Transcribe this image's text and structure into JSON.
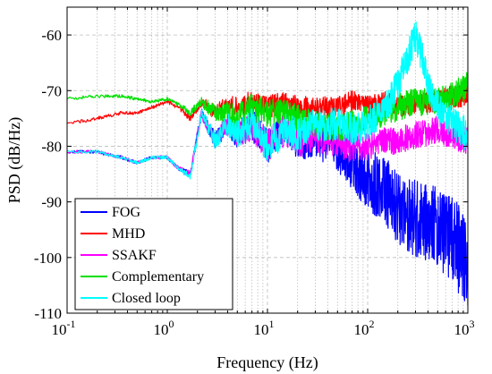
{
  "chart_data": {
    "type": "line",
    "xlabel": "Frequency (Hz)",
    "ylabel": "PSD (dB/Hz)",
    "xscale": "log",
    "xlim": [
      0.1,
      1000
    ],
    "ylim": [
      -110,
      -55
    ],
    "grid": true,
    "legend_position": "bottom-left",
    "x_ticks": [
      0.1,
      1,
      10,
      100,
      1000
    ],
    "x_tick_bases": [
      "10",
      "10",
      "10",
      "10",
      "10"
    ],
    "x_tick_exponents": [
      "-1",
      "0",
      "1",
      "2",
      "3"
    ],
    "y_ticks": [
      -110,
      -100,
      -90,
      -80,
      -70,
      -60
    ],
    "y_tick_labels": [
      "-110",
      "-100",
      "-90",
      "-80",
      "-70",
      "-60"
    ],
    "series": [
      {
        "name": "FOG",
        "color": "#0000ff",
        "x": [
          0.1,
          0.2,
          0.35,
          0.5,
          0.7,
          1.0,
          1.3,
          1.7,
          2.2,
          3,
          4,
          5,
          7,
          10,
          15,
          20,
          30,
          50,
          70,
          100,
          150,
          200,
          300,
          500,
          700,
          1000
        ],
        "y": [
          -81,
          -81,
          -82,
          -83,
          -82,
          -82,
          -84,
          -85,
          -74,
          -79,
          -76,
          -78,
          -76,
          -80,
          -77,
          -79,
          -78,
          -80,
          -83,
          -86,
          -88,
          -91,
          -93,
          -94,
          -97,
          -101
        ],
        "noise": [
          0.3,
          0.3,
          0.3,
          0.3,
          0.3,
          0.3,
          0.4,
          0.6,
          1.0,
          1.5,
          2.0,
          2.5,
          3.0,
          3.0,
          3.0,
          3.5,
          4.0,
          4.5,
          5.0,
          5.5,
          6.0,
          6.5,
          7.0,
          7.5,
          8.0,
          8.5
        ]
      },
      {
        "name": "MHD",
        "color": "#ff0000",
        "x": [
          0.1,
          0.2,
          0.35,
          0.5,
          0.7,
          1.0,
          1.3,
          1.7,
          2.2,
          3,
          4,
          5,
          7,
          10,
          15,
          20,
          30,
          50,
          70,
          100,
          150,
          200,
          300,
          500,
          700,
          1000
        ],
        "y": [
          -76,
          -75,
          -74,
          -74,
          -73,
          -72,
          -73,
          -75,
          -72,
          -74,
          -73,
          -73,
          -72,
          -73,
          -72,
          -73,
          -73,
          -73,
          -72,
          -73,
          -72,
          -73,
          -72,
          -72,
          -71,
          -71
        ],
        "noise": [
          0.3,
          0.3,
          0.3,
          0.3,
          0.3,
          0.3,
          0.4,
          0.6,
          1.0,
          1.5,
          2.0,
          2.0,
          2.0,
          2.0,
          2.0,
          2.0,
          2.0,
          2.0,
          2.0,
          2.0,
          2.0,
          2.0,
          2.0,
          2.0,
          2.0,
          2.0
        ]
      },
      {
        "name": "SSAKF",
        "color": "#ff00ff",
        "x": [
          0.1,
          0.2,
          0.35,
          0.5,
          0.7,
          1.0,
          1.3,
          1.7,
          2.2,
          3,
          4,
          5,
          7,
          10,
          15,
          20,
          30,
          50,
          70,
          100,
          150,
          200,
          300,
          500,
          700,
          1000
        ],
        "y": [
          -81,
          -81,
          -82,
          -83,
          -82,
          -82,
          -84,
          -85,
          -74,
          -79,
          -76,
          -78,
          -76,
          -80,
          -77,
          -79,
          -78,
          -79,
          -80,
          -80,
          -79,
          -79,
          -78,
          -77,
          -78,
          -79
        ],
        "noise": [
          0.3,
          0.3,
          0.3,
          0.3,
          0.3,
          0.3,
          0.4,
          0.6,
          1.0,
          1.5,
          2.0,
          2.5,
          3.0,
          3.0,
          3.0,
          3.0,
          3.0,
          3.0,
          3.0,
          2.5,
          2.5,
          2.5,
          2.5,
          2.5,
          2.5,
          2.5
        ]
      },
      {
        "name": "Complementary",
        "color": "#00e000",
        "x": [
          0.1,
          0.2,
          0.35,
          0.5,
          0.7,
          1.0,
          1.3,
          1.7,
          2.2,
          3,
          4,
          5,
          7,
          10,
          15,
          20,
          30,
          50,
          70,
          100,
          150,
          200,
          300,
          500,
          700,
          1000
        ],
        "y": [
          -71.5,
          -71,
          -71,
          -71.5,
          -72,
          -71.5,
          -72.5,
          -74,
          -72,
          -74,
          -74,
          -75,
          -73,
          -74,
          -74,
          -75,
          -76,
          -77,
          -76,
          -75,
          -74,
          -73,
          -72,
          -72,
          -71,
          -69
        ],
        "noise": [
          0.3,
          0.3,
          0.3,
          0.3,
          0.3,
          0.3,
          0.4,
          0.6,
          1.0,
          1.5,
          2.0,
          2.5,
          2.5,
          2.5,
          2.5,
          2.5,
          2.5,
          2.5,
          2.5,
          2.5,
          2.5,
          2.5,
          2.5,
          2.5,
          2.5,
          2.5
        ]
      },
      {
        "name": "Closed loop",
        "color": "#00ffff",
        "x": [
          0.1,
          0.2,
          0.35,
          0.5,
          0.7,
          1.0,
          1.3,
          1.7,
          2.2,
          3,
          4,
          5,
          7,
          10,
          15,
          20,
          30,
          50,
          70,
          100,
          150,
          200,
          250,
          300,
          350,
          400,
          500,
          700,
          1000
        ],
        "y": [
          -81,
          -81,
          -82,
          -83,
          -82,
          -82,
          -84,
          -85.5,
          -74,
          -79,
          -76,
          -78,
          -76,
          -80,
          -77,
          -78,
          -76,
          -76,
          -77,
          -76,
          -73,
          -69,
          -64,
          -60,
          -64,
          -69,
          -73,
          -76,
          -78
        ],
        "noise": [
          0.3,
          0.3,
          0.3,
          0.3,
          0.3,
          0.3,
          0.4,
          0.6,
          1.0,
          1.5,
          2.0,
          2.5,
          3.0,
          3.0,
          3.0,
          3.0,
          3.0,
          3.0,
          3.0,
          3.0,
          3.0,
          3.0,
          3.0,
          3.0,
          3.0,
          3.0,
          3.0,
          3.0,
          3.0
        ]
      }
    ]
  }
}
